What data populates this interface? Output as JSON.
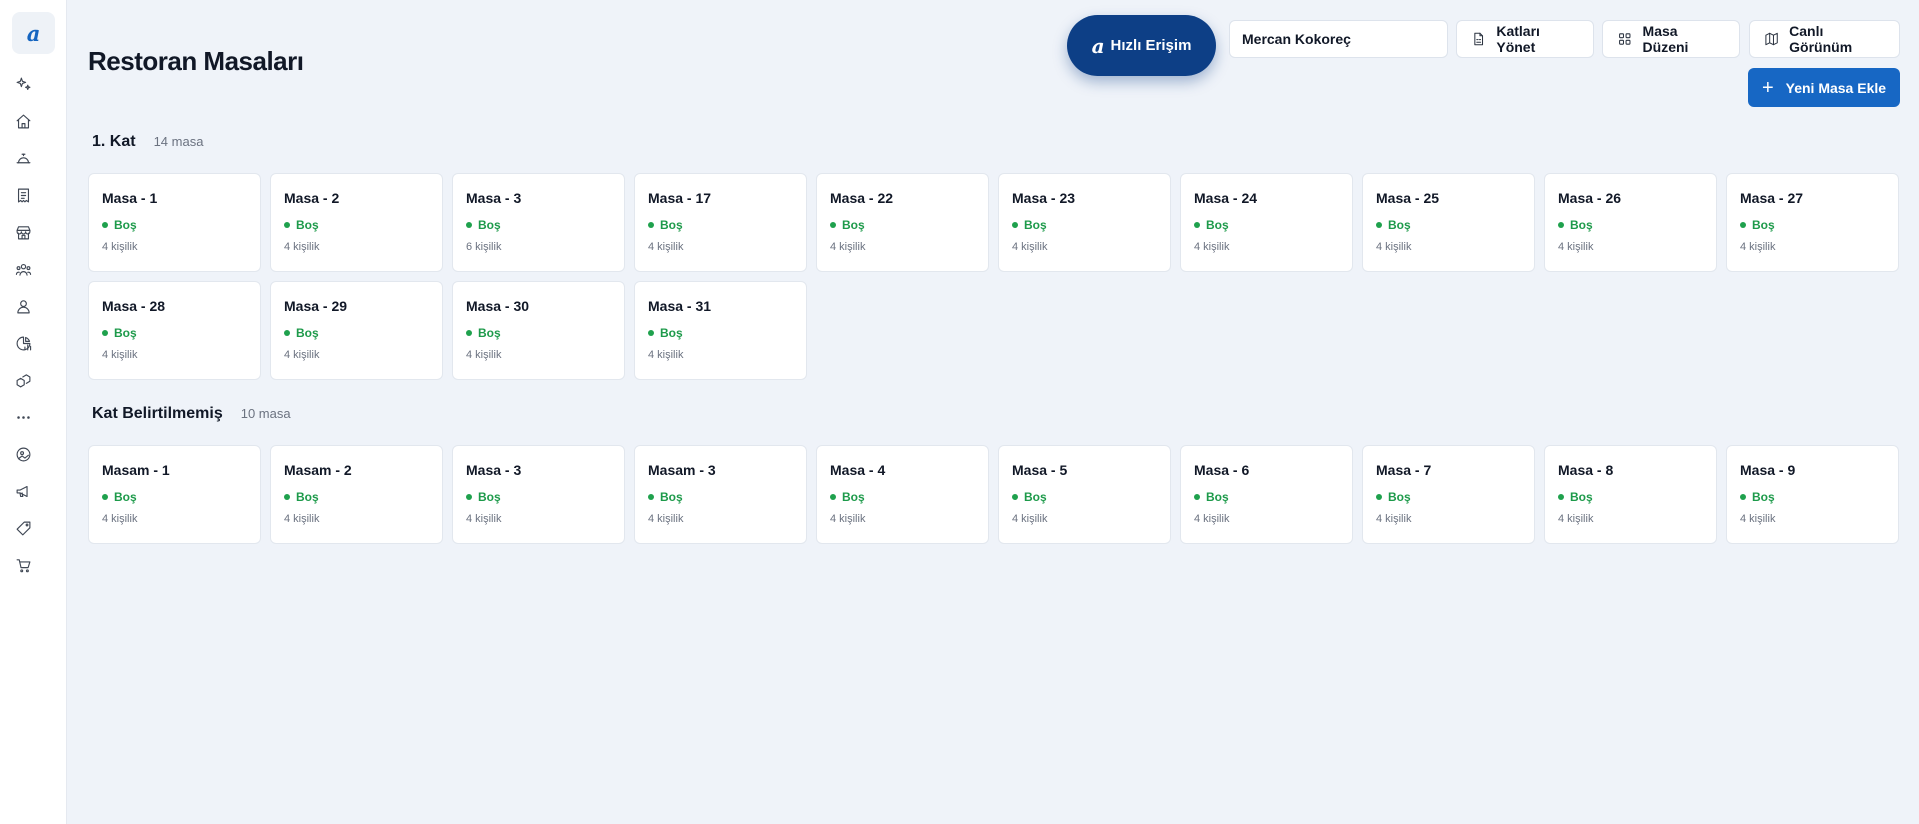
{
  "sidebar": {
    "logo": "a",
    "items": [
      {
        "icon": "sparkles-icon"
      },
      {
        "icon": "home-icon"
      },
      {
        "icon": "concierge-bell-icon"
      },
      {
        "icon": "receipt-icon"
      },
      {
        "icon": "store-icon"
      },
      {
        "icon": "users-group-icon"
      },
      {
        "icon": "user-icon"
      },
      {
        "icon": "chart-pie-icon"
      },
      {
        "icon": "boxes-icon"
      },
      {
        "icon": "more-dots-icon"
      },
      {
        "icon": "image-icon"
      },
      {
        "icon": "megaphone-icon"
      },
      {
        "icon": "tag-icon"
      },
      {
        "icon": "cart-icon"
      }
    ]
  },
  "header": {
    "title": "Restoran Masaları",
    "quick_access": {
      "logo": "a",
      "label": "Hızlı Erişim"
    },
    "restaurant": "Mercan Kokoreç",
    "manage_floors": "Katları Yönet",
    "table_layout": "Masa Düzeni",
    "live_view": "Canlı Görünüm",
    "add_table": "Yeni Masa Ekle"
  },
  "sections": [
    {
      "title": "1. Kat",
      "count": "14 masa",
      "tables": [
        {
          "name": "Masa - 1",
          "status": "Boş",
          "capacity": "4 kişilik"
        },
        {
          "name": "Masa - 2",
          "status": "Boş",
          "capacity": "4 kişilik"
        },
        {
          "name": "Masa - 3",
          "status": "Boş",
          "capacity": "6 kişilik"
        },
        {
          "name": "Masa - 17",
          "status": "Boş",
          "capacity": "4 kişilik"
        },
        {
          "name": "Masa - 22",
          "status": "Boş",
          "capacity": "4 kişilik"
        },
        {
          "name": "Masa - 23",
          "status": "Boş",
          "capacity": "4 kişilik"
        },
        {
          "name": "Masa - 24",
          "status": "Boş",
          "capacity": "4 kişilik"
        },
        {
          "name": "Masa - 25",
          "status": "Boş",
          "capacity": "4 kişilik"
        },
        {
          "name": "Masa - 26",
          "status": "Boş",
          "capacity": "4 kişilik"
        },
        {
          "name": "Masa - 27",
          "status": "Boş",
          "capacity": "4 kişilik"
        },
        {
          "name": "Masa - 28",
          "status": "Boş",
          "capacity": "4 kişilik"
        },
        {
          "name": "Masa - 29",
          "status": "Boş",
          "capacity": "4 kişilik"
        },
        {
          "name": "Masa - 30",
          "status": "Boş",
          "capacity": "4 kişilik"
        },
        {
          "name": "Masa - 31",
          "status": "Boş",
          "capacity": "4 kişilik"
        }
      ]
    },
    {
      "title": "Kat Belirtilmemiş",
      "count": "10 masa",
      "tables": [
        {
          "name": "Masam - 1",
          "status": "Boş",
          "capacity": "4 kişilik"
        },
        {
          "name": "Masam - 2",
          "status": "Boş",
          "capacity": "4 kişilik"
        },
        {
          "name": "Masa - 3",
          "status": "Boş",
          "capacity": "4 kişilik"
        },
        {
          "name": "Masam - 3",
          "status": "Boş",
          "capacity": "4 kişilik"
        },
        {
          "name": "Masa - 4",
          "status": "Boş",
          "capacity": "4 kişilik"
        },
        {
          "name": "Masa - 5",
          "status": "Boş",
          "capacity": "4 kişilik"
        },
        {
          "name": "Masa - 6",
          "status": "Boş",
          "capacity": "4 kişilik"
        },
        {
          "name": "Masa - 7",
          "status": "Boş",
          "capacity": "4 kişilik"
        },
        {
          "name": "Masa - 8",
          "status": "Boş",
          "capacity": "4 kişilik"
        },
        {
          "name": "Masa - 9",
          "status": "Boş",
          "capacity": "4 kişilik"
        }
      ]
    }
  ],
  "colors": {
    "primary": "#1767c4",
    "quick_access": "#0d3f86",
    "status_empty": "#1d9a4a",
    "background": "#eff3f9"
  }
}
